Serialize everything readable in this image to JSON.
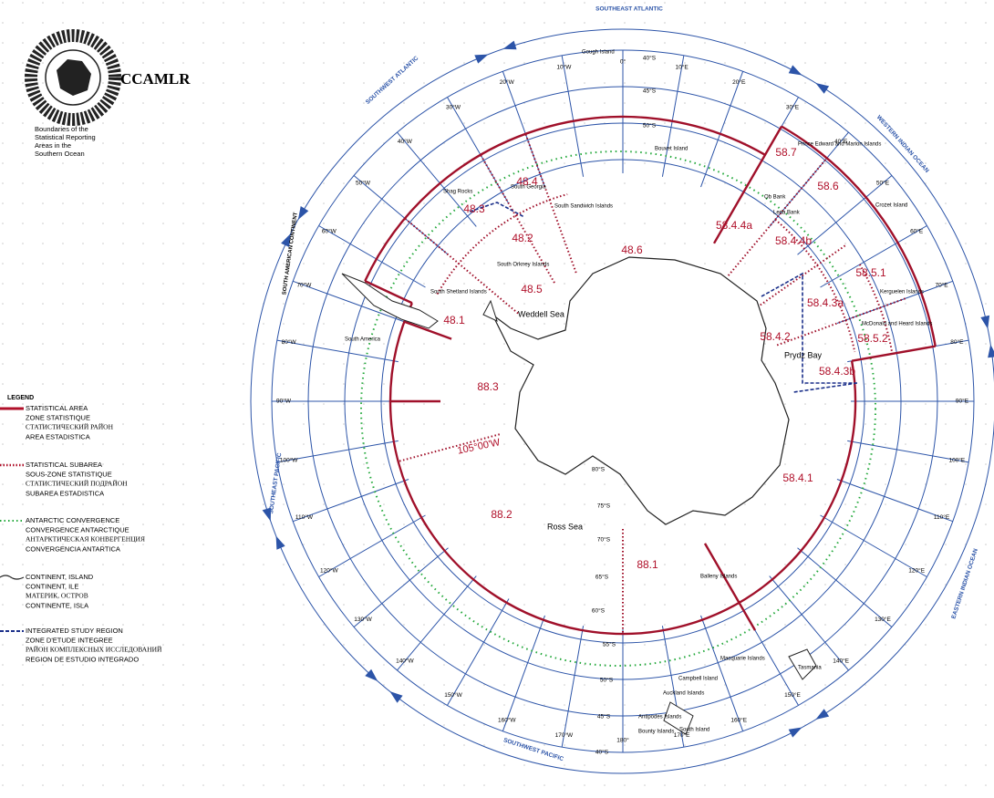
{
  "header": {
    "title": "CCAMLR",
    "subtitle_lines": [
      "Boundaries of the",
      "Statistical Reporting",
      "Areas in the",
      "Southern Ocean"
    ]
  },
  "legend": {
    "title": "LEGEND",
    "items": [
      {
        "lines": [
          "STATISTICAL AREA",
          "ZONE STATISTIQUE",
          "СТАТИСТИЧЕСКИЙ РАЙОН",
          "AREA ESTADISTICA"
        ]
      },
      {
        "lines": [
          "STATISTICAL SUBAREA",
          "SOUS-ZONE STATISTIQUE",
          "СТАТИСТИЧЕСКИЙ ПОДРАЙОН",
          "SUBAREA ESTADISTICA"
        ]
      },
      {
        "lines": [
          "ANTARCTIC CONVERGENCE",
          "CONVERGENCE ANTARCTIQUE",
          "АНТАРКТИЧЕСКАЯ КОНВЕРГЕНЦИЯ",
          "CONVERGENCIA ANTARTICA"
        ]
      },
      {
        "lines": [
          "CONTINENT, ISLAND",
          "CONTINENT, ILE",
          "МАТЕРИК, ОСТРОВ",
          "CONTINENTE, ISLA"
        ]
      },
      {
        "lines": [
          "INTEGRATED STUDY REGION",
          "ZONE D'ETUDE INTEGREE",
          "РАЙОН КОМПЛЕКСНЫХ ИССЛЕДОВАНИЙ",
          "REGION DE ESTUDIO INTEGRADO"
        ]
      }
    ]
  },
  "oceans": [
    "SOUTHEAST ATLANTIC",
    "WESTERN INDIAN OCEAN",
    "EASTERN INDIAN OCEAN",
    "SOUTHWEST PACIFIC",
    "SOUTHEAST PACIFIC",
    "SOUTHWEST ATLANTIC"
  ],
  "longitudes": [
    "0°",
    "10°E",
    "20°E",
    "30°E",
    "40°E",
    "50°E",
    "60°E",
    "70°E",
    "80°E",
    "90°E",
    "100°E",
    "110°E",
    "120°E",
    "130°E",
    "140°E",
    "150°E",
    "160°E",
    "170°E",
    "180°",
    "170°W",
    "160°W",
    "150°W",
    "140°W",
    "130°W",
    "120°W",
    "110°W",
    "100°W",
    "90°W",
    "80°W",
    "70°W",
    "60°W",
    "50°W",
    "40°W",
    "30°W",
    "20°W",
    "10°W"
  ],
  "latitudes": [
    "40°S",
    "45°S",
    "50°S",
    "40°S",
    "45°S",
    "50°S",
    "55°S",
    "60°S",
    "65°S",
    "70°S",
    "75°S",
    "80°S"
  ],
  "areas": [
    "48.6",
    "48.4",
    "48.3",
    "48.2",
    "48.5",
    "48.1",
    "88.3",
    "88.2",
    "88.1",
    "58.7",
    "58.6",
    "58.4.4a",
    "58.4.4b",
    "58.5.1",
    "58.4.3a",
    "58.4.2",
    "58.5.2",
    "58.4.3b",
    "58.4.1",
    "105°00'W"
  ],
  "places": [
    "Gough Island",
    "Bouvet Island",
    "Shag Rocks",
    "South Georgia",
    "South Sandwich Islands",
    "South Orkney Islands",
    "South Shetland Islands",
    "South America",
    "Weddell Sea",
    "Ross Sea",
    "Prydz Bay",
    "Balleny Islands",
    "Prince Edward and Marion Islands",
    "Ob Bank",
    "Lena Bank",
    "Crozet Island",
    "Kerguelen Islands",
    "McDonald and Heard Islands",
    "Macquarie Islands",
    "Campbell Island",
    "Auckland Islands",
    "Antipodes Islands",
    "Bounty Islands",
    "South Island",
    "Tasmania",
    "SOUTH AMERICAN CONTINENT"
  ]
}
